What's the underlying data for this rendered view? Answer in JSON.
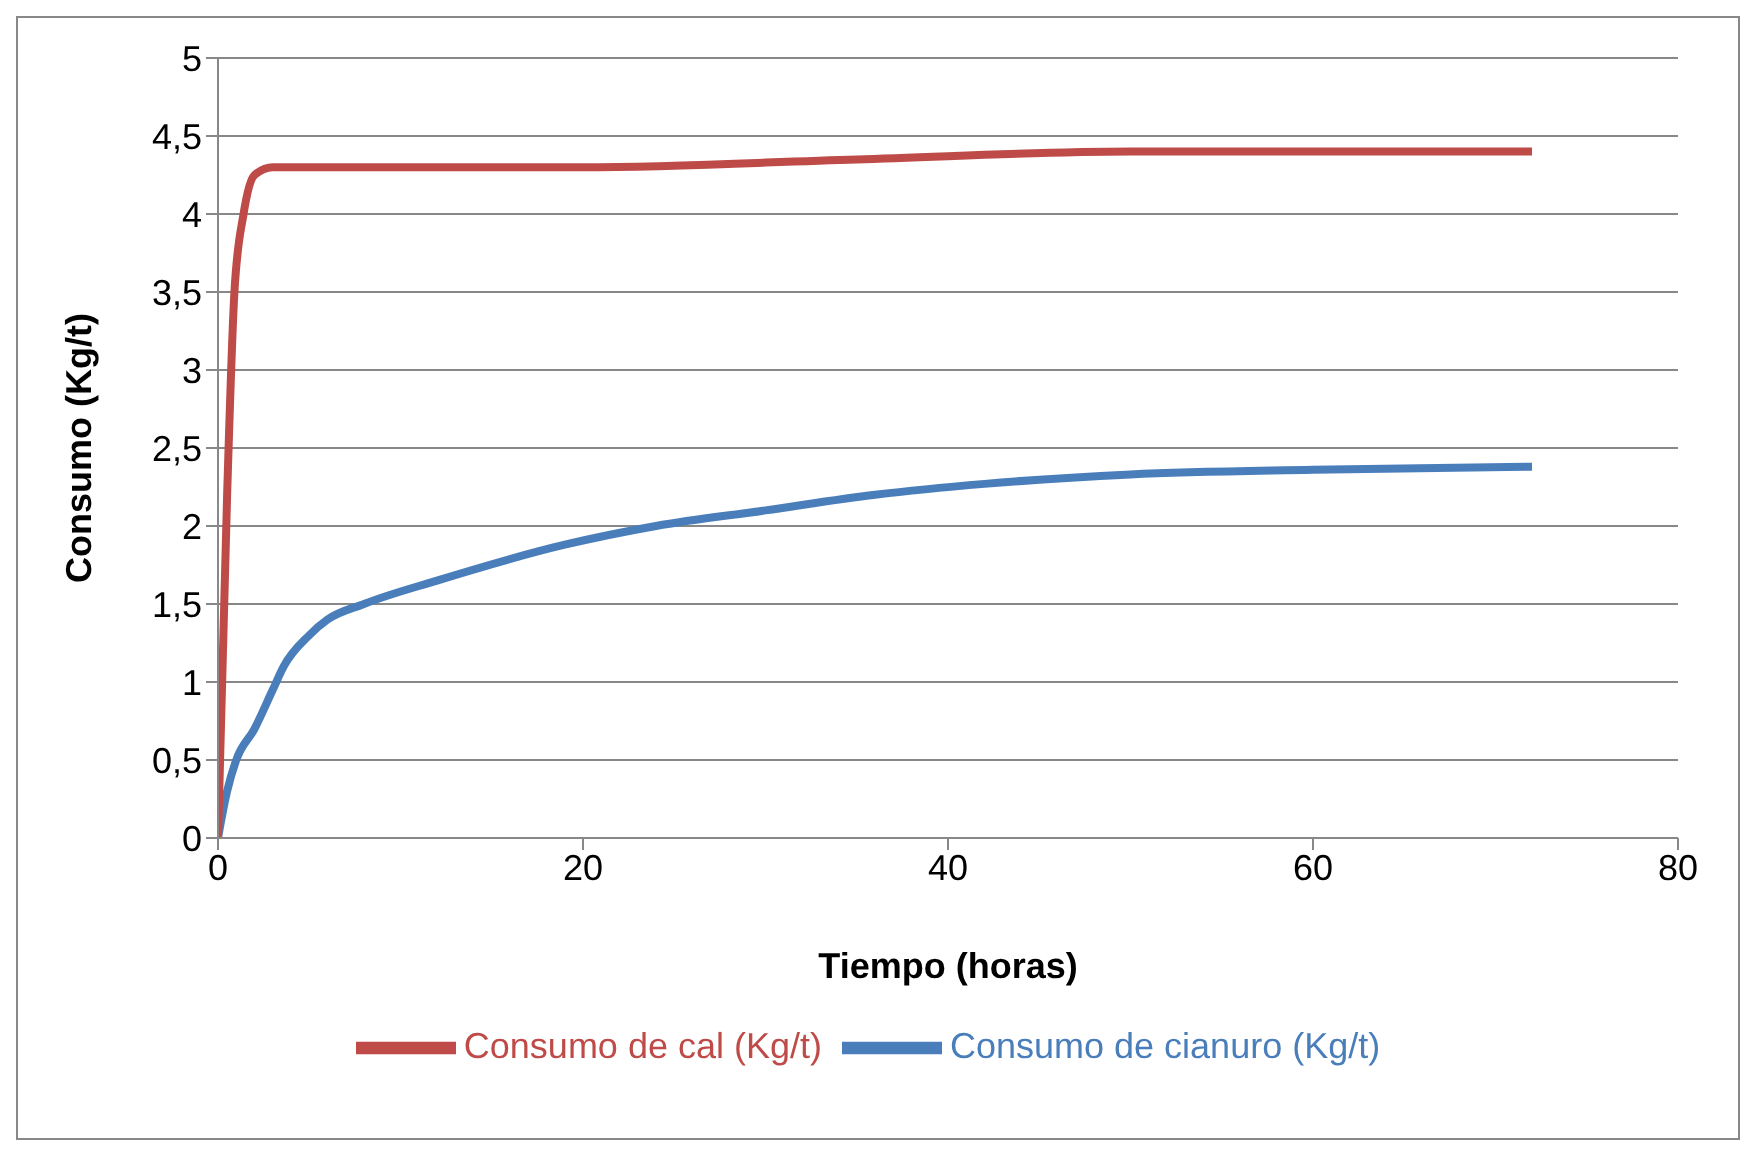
{
  "chart_data": {
    "type": "line",
    "xlabel": "Tiempo  (horas)",
    "ylabel": "Consumo (Kg/t)",
    "series": [
      {
        "name": "Consumo de cianuro (Kg/t)",
        "color": "#4a7ebb",
        "x": [
          0,
          0.5,
          1,
          2,
          3,
          3.6,
          5,
          6,
          8,
          12,
          19,
          24,
          30,
          36,
          42,
          50,
          60,
          72
        ],
        "values": [
          0,
          0.3,
          0.5,
          0.7,
          0.95,
          1.1,
          1.3,
          1.4,
          1.5,
          1.65,
          1.88,
          2.0,
          2.1,
          2.2,
          2.27,
          2.33,
          2.36,
          2.38
        ]
      },
      {
        "name": "Consumo de cal (Kg/t)",
        "color": "#be4b48",
        "x": [
          0,
          0.5,
          0.9,
          1.4,
          2,
          3,
          5,
          10,
          20,
          35,
          50,
          72
        ],
        "values": [
          0,
          2.2,
          3.5,
          4.0,
          4.25,
          4.3,
          4.3,
          4.3,
          4.3,
          4.35,
          4.4,
          4.4
        ]
      }
    ],
    "xlim": [
      0,
      80
    ],
    "xticks": [
      0,
      20,
      40,
      60,
      80
    ],
    "ylim": [
      0,
      5
    ],
    "yticks": [
      0,
      {
        "value": 0.5,
        "label": "0,5"
      },
      1,
      {
        "value": 1.5,
        "label": "1,5"
      },
      2,
      {
        "value": 2.5,
        "label": "2,5"
      },
      3,
      {
        "value": 3.5,
        "label": "3,5"
      },
      4,
      {
        "value": 4.5,
        "label": "4,5"
      },
      5
    ],
    "grid": "y",
    "legend": "bottom",
    "marker": "none",
    "line_style": "solid"
  }
}
